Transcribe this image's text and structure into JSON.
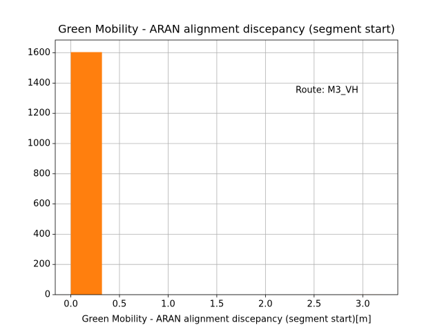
{
  "chart_data": {
    "type": "histogram",
    "title": "Green Mobility - ARAN alignment discepancy (segment start)",
    "xlabel": "Green Mobility - ARAN alignment discepancy (segment start)[m]",
    "annotation": "Route: M3_VH",
    "bins": [
      0,
      0.32,
      0.64,
      0.96,
      1.28,
      1.6,
      1.92,
      2.24,
      2.56,
      2.88,
      3.2
    ],
    "counts": [
      1605,
      0,
      0,
      0,
      0,
      0,
      0,
      0,
      0,
      1
    ],
    "color": "#ff7f0e",
    "xlim": [
      -0.16,
      3.36
    ],
    "ylim": [
      0,
      1685
    ],
    "xticks": [
      {
        "value": 0,
        "label": "0.0"
      },
      0.5,
      {
        "value": 1,
        "label": "1.0"
      },
      1.5,
      {
        "value": 2,
        "label": "2.0"
      },
      2.5,
      {
        "value": 3,
        "label": "3.0"
      }
    ],
    "yticks": [
      0,
      200,
      400,
      600,
      800,
      1000,
      1200,
      1400,
      1600
    ],
    "grid": true
  }
}
